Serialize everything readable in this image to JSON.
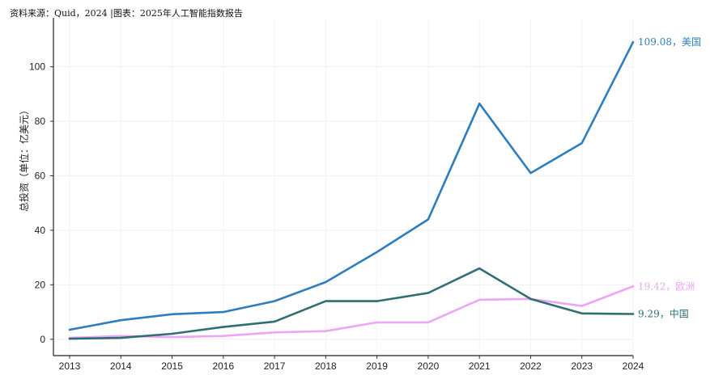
{
  "source_note": "资料来源：Quid，2024 |图表：2025年人工智能指数报告",
  "chart_data": {
    "type": "line",
    "title": "",
    "xlabel": "",
    "ylabel": "总投资（单位：亿美元）",
    "x": [
      2013,
      2014,
      2015,
      2016,
      2017,
      2018,
      2019,
      2020,
      2021,
      2022,
      2023,
      2024
    ],
    "ylim": [
      -6,
      118
    ],
    "yticks": [
      0,
      20,
      40,
      60,
      80,
      100
    ],
    "grid": true,
    "legend": "end-labels",
    "series": [
      {
        "name": "美国",
        "color": "#2e7ebf",
        "values": [
          3.5,
          7.0,
          9.2,
          10.0,
          14.0,
          21.0,
          32.0,
          44.0,
          86.5,
          61.0,
          72.0,
          109.08
        ],
        "end_label": "109.08，美国"
      },
      {
        "name": "欧洲",
        "color": "#eba6f5",
        "values": [
          0.5,
          1.2,
          0.8,
          1.2,
          2.5,
          3.0,
          6.2,
          6.2,
          14.5,
          14.8,
          12.2,
          19.42
        ],
        "end_label": "19.42，欧洲"
      },
      {
        "name": "中国",
        "color": "#2f6f74",
        "values": [
          0.2,
          0.5,
          2.0,
          4.5,
          6.5,
          14.0,
          14.0,
          17.0,
          26.0,
          14.8,
          9.5,
          9.29
        ],
        "end_label": "9.29，中国"
      }
    ]
  }
}
